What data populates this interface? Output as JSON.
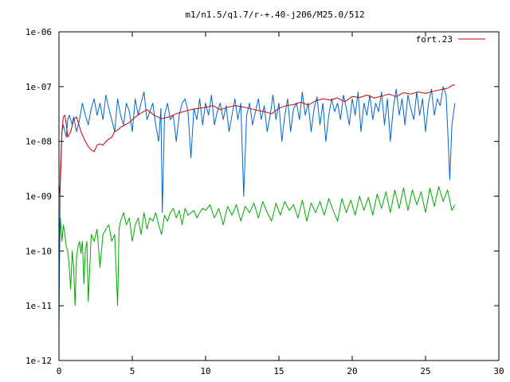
{
  "chart_data": {
    "type": "line",
    "title": "m1/n1.5/q1.7/r-+.40-j206/M25.0/512",
    "xlabel": "",
    "ylabel": "",
    "xlim": [
      0,
      30
    ],
    "ylim": [
      1e-12,
      1e-06
    ],
    "yscale": "log",
    "grid": false,
    "legend_position": "top-right",
    "x_ticks": [
      0,
      5,
      10,
      15,
      20,
      25,
      30
    ],
    "x_tick_labels": [
      "0",
      "5",
      "10",
      "15",
      "20",
      "25",
      "30"
    ],
    "y_ticks": [
      1e-12,
      1e-11,
      1e-10,
      1e-09,
      1e-08,
      1e-07,
      1e-06
    ],
    "y_tick_labels": [
      "1e-12",
      "1e-11",
      "1e-10",
      "1e-09",
      "1e-08",
      "1e-07",
      "1e-06"
    ],
    "series": [
      {
        "name": "fort.23",
        "color": "#cc0000",
        "x": [
          0.0,
          0.1,
          0.2,
          0.3,
          0.4,
          0.5,
          0.6,
          0.8,
          1.0,
          1.2,
          1.5,
          1.8,
          2.0,
          2.2,
          2.4,
          2.6,
          2.8,
          3.0,
          3.2,
          3.4,
          3.6,
          3.8,
          4.0,
          4.2,
          4.5,
          4.8,
          5.0,
          5.3,
          5.6,
          6.0,
          6.5,
          7.0,
          7.5,
          8.0,
          8.5,
          9.0,
          9.5,
          10.0,
          10.5,
          11.0,
          11.5,
          12.0,
          12.5,
          13.0,
          13.5,
          14.0,
          14.5,
          15.0,
          15.5,
          16.0,
          16.5,
          17.0,
          17.5,
          18.0,
          18.5,
          19.0,
          19.5,
          20.0,
          20.5,
          21.0,
          21.5,
          22.0,
          22.5,
          23.0,
          23.5,
          24.0,
          24.5,
          25.0,
          25.5,
          26.0,
          26.5,
          26.8,
          27.0
        ],
        "y": [
          1e-09,
          1.8e-09,
          1.5e-08,
          2.8e-08,
          3e-08,
          2e-08,
          1.2e-08,
          1.5e-08,
          2.5e-08,
          2.8e-08,
          1.5e-08,
          1e-08,
          8e-09,
          7e-09,
          6.5e-09,
          8.5e-09,
          9e-09,
          8.5e-09,
          1e-08,
          1.1e-08,
          1.2e-08,
          1.5e-08,
          1.6e-08,
          1.8e-08,
          2e-08,
          2.2e-08,
          2.5e-08,
          2.9e-08,
          3.3e-08,
          3.8e-08,
          3e-08,
          2.6e-08,
          2.8e-08,
          3.2e-08,
          3.5e-08,
          3.8e-08,
          4e-08,
          4.2e-08,
          4.5e-08,
          3.8e-08,
          4.2e-08,
          4.5e-08,
          4.3e-08,
          4e-08,
          3.7e-08,
          3.5e-08,
          3.2e-08,
          4e-08,
          4.5e-08,
          4.7e-08,
          5.2e-08,
          4.6e-08,
          5.5e-08,
          6e-08,
          5.7e-08,
          6.2e-08,
          5.3e-08,
          6.6e-08,
          6.3e-08,
          7e-08,
          6.2e-08,
          6.7e-08,
          7.3e-08,
          6.6e-08,
          7.7e-08,
          7.3e-08,
          8e-08,
          7.5e-08,
          8.2e-08,
          8.8e-08,
          9.3e-08,
          1.05e-07,
          1.08e-07
        ]
      },
      {
        "color": "#0066cc",
        "x": [
          0.0,
          0.05,
          0.1,
          0.2,
          0.3,
          0.4,
          0.5,
          0.6,
          0.7,
          0.8,
          0.9,
          1.0,
          1.2,
          1.4,
          1.6,
          1.8,
          2.0,
          2.2,
          2.4,
          2.6,
          2.8,
          3.0,
          3.2,
          3.4,
          3.6,
          3.8,
          4.0,
          4.2,
          4.4,
          4.6,
          4.8,
          5.0,
          5.2,
          5.4,
          5.6,
          5.8,
          6.0,
          6.2,
          6.4,
          6.6,
          6.8,
          6.95,
          7.05,
          7.2,
          7.4,
          7.6,
          7.8,
          8.0,
          8.2,
          8.4,
          8.6,
          8.8,
          9.0,
          9.2,
          9.4,
          9.6,
          9.8,
          10.0,
          10.2,
          10.4,
          10.6,
          10.8,
          11.0,
          11.2,
          11.4,
          11.6,
          11.8,
          12.0,
          12.2,
          12.4,
          12.6,
          12.8,
          13.0,
          13.2,
          13.4,
          13.6,
          13.8,
          14.0,
          14.2,
          14.4,
          14.6,
          14.8,
          15.0,
          15.2,
          15.4,
          15.6,
          15.8,
          16.0,
          16.2,
          16.4,
          16.6,
          16.8,
          17.0,
          17.2,
          17.4,
          17.6,
          17.8,
          18.0,
          18.2,
          18.4,
          18.6,
          18.8,
          19.0,
          19.2,
          19.4,
          19.6,
          19.8,
          20.0,
          20.2,
          20.4,
          20.6,
          20.8,
          21.0,
          21.2,
          21.4,
          21.6,
          21.8,
          22.0,
          22.2,
          22.4,
          22.6,
          22.8,
          23.0,
          23.2,
          23.4,
          23.6,
          23.8,
          24.0,
          24.2,
          24.4,
          24.6,
          24.8,
          25.0,
          25.2,
          25.4,
          25.6,
          25.8,
          26.0,
          26.2,
          26.4,
          26.55,
          26.65,
          26.8,
          27.0
        ],
        "y": [
          3e-12,
          2e-10,
          3e-09,
          1.5e-08,
          2e-08,
          1.5e-08,
          1.2e-08,
          2.5e-08,
          3e-08,
          2.5e-08,
          2e-08,
          2.8e-08,
          1.5e-08,
          2.5e-08,
          5e-08,
          3e-08,
          2e-08,
          4e-08,
          6e-08,
          3e-08,
          5e-08,
          2.5e-08,
          7e-08,
          4e-08,
          2.5e-08,
          1.5e-08,
          6e-08,
          3e-08,
          2e-08,
          5e-08,
          3.5e-08,
          1.5e-08,
          6e-08,
          3e-08,
          5e-08,
          8e-08,
          2.5e-08,
          3.5e-08,
          5e-08,
          2e-08,
          1e-08,
          4e-08,
          5e-10,
          3e-08,
          5e-08,
          2.5e-08,
          3e-08,
          1e-08,
          3e-08,
          5e-08,
          6e-08,
          3.5e-08,
          5e-09,
          4e-08,
          2.5e-08,
          6e-08,
          2e-08,
          5e-08,
          3e-08,
          7e-08,
          2e-08,
          3.5e-08,
          5e-08,
          2.5e-08,
          4.5e-08,
          1.5e-08,
          3e-08,
          6e-08,
          2.5e-08,
          5e-08,
          1e-09,
          3e-08,
          5e-08,
          2e-08,
          3.5e-08,
          6e-08,
          2.5e-08,
          4.5e-08,
          1.5e-08,
          3e-08,
          7e-08,
          2.5e-08,
          5e-08,
          1e-08,
          3e-08,
          6e-08,
          1.5e-08,
          4e-08,
          5e-08,
          2.5e-08,
          8e-08,
          3e-08,
          5e-08,
          1.5e-08,
          4e-08,
          6.5e-08,
          2e-08,
          5e-08,
          1e-08,
          3e-08,
          6e-08,
          3.5e-08,
          5e-08,
          2.5e-08,
          7e-08,
          4e-08,
          2e-08,
          6e-08,
          3e-08,
          8e-08,
          1.5e-08,
          5e-08,
          3e-08,
          7e-08,
          2.5e-08,
          5e-08,
          3.5e-08,
          8e-08,
          2e-08,
          6e-08,
          1e-08,
          4e-08,
          9e-08,
          3e-08,
          6e-08,
          2e-08,
          7e-08,
          4e-08,
          2.5e-08,
          8e-08,
          3e-08,
          6e-08,
          1.5e-08,
          5e-08,
          9e-08,
          3e-08,
          6e-08,
          4.5e-08,
          1e-07,
          7e-08,
          1e-08,
          2e-09,
          2e-08,
          5e-08
        ]
      },
      {
        "color": "#00aa00",
        "x": [
          0.0,
          0.1,
          0.2,
          0.3,
          0.4,
          0.5,
          0.6,
          0.7,
          0.8,
          0.9,
          1.0,
          1.1,
          1.2,
          1.3,
          1.4,
          1.5,
          1.6,
          1.7,
          1.8,
          1.9,
          2.0,
          2.2,
          2.4,
          2.6,
          2.8,
          3.0,
          3.2,
          3.4,
          3.6,
          3.8,
          4.0,
          4.1,
          4.2,
          4.4,
          4.6,
          4.8,
          5.0,
          5.2,
          5.4,
          5.6,
          5.8,
          6.0,
          6.2,
          6.4,
          6.6,
          6.8,
          7.0,
          7.2,
          7.4,
          7.6,
          7.8,
          8.0,
          8.2,
          8.4,
          8.6,
          8.8,
          9.0,
          9.2,
          9.4,
          9.6,
          9.8,
          10.0,
          10.3,
          10.6,
          10.9,
          11.2,
          11.5,
          11.8,
          12.1,
          12.4,
          12.7,
          13.0,
          13.3,
          13.6,
          13.9,
          14.2,
          14.5,
          14.8,
          15.1,
          15.4,
          15.7,
          16.0,
          16.3,
          16.6,
          16.9,
          17.2,
          17.5,
          17.8,
          18.1,
          18.4,
          18.7,
          19.0,
          19.3,
          19.6,
          19.9,
          20.2,
          20.5,
          20.8,
          21.1,
          21.4,
          21.7,
          22.0,
          22.3,
          22.6,
          22.9,
          23.2,
          23.5,
          23.8,
          24.1,
          24.4,
          24.7,
          25.0,
          25.3,
          25.6,
          25.9,
          26.2,
          26.5,
          26.8,
          27.0
        ],
        "y": [
          3e-11,
          4e-10,
          1.5e-10,
          3e-10,
          2e-10,
          1.2e-10,
          1e-10,
          5e-11,
          2e-11,
          1e-10,
          5e-11,
          1e-11,
          8e-11,
          1.2e-10,
          1.5e-10,
          9e-11,
          1.5e-10,
          2.5e-11,
          1e-10,
          1.5e-10,
          1.2e-11,
          2e-10,
          1.5e-10,
          2.5e-10,
          5e-11,
          2e-10,
          2.5e-10,
          3e-10,
          1.5e-10,
          2e-10,
          1e-11,
          2.5e-10,
          3.5e-10,
          5e-10,
          3e-10,
          4e-10,
          1.5e-10,
          3e-10,
          4e-10,
          2e-10,
          5e-10,
          2.5e-10,
          4e-10,
          3.5e-10,
          5e-10,
          3e-10,
          2e-10,
          4.5e-10,
          3.5e-10,
          5e-10,
          6e-10,
          4e-10,
          5.5e-10,
          3e-10,
          6e-10,
          4.5e-10,
          5e-10,
          5.5e-10,
          4e-10,
          5e-10,
          6e-10,
          5.5e-10,
          7e-10,
          4e-10,
          6e-10,
          3e-10,
          6.5e-10,
          4.5e-10,
          7e-10,
          3.5e-10,
          6.5e-10,
          5e-10,
          7.5e-10,
          4e-10,
          8e-10,
          5e-10,
          3.5e-10,
          7.5e-10,
          4.5e-10,
          8e-10,
          5.5e-10,
          7e-10,
          4e-10,
          8.5e-10,
          3.5e-10,
          7.5e-10,
          5e-10,
          8e-10,
          4.5e-10,
          9e-10,
          5.5e-10,
          3.5e-10,
          9e-10,
          5e-10,
          8.5e-10,
          4.5e-10,
          1e-09,
          5.5e-10,
          9.5e-10,
          4.5e-10,
          1.1e-09,
          6e-10,
          1.2e-09,
          5e-10,
          1.3e-09,
          6e-10,
          1.4e-09,
          5.5e-10,
          1.3e-09,
          7e-10,
          1.2e-09,
          5e-10,
          1.4e-09,
          6.5e-10,
          1.5e-09,
          8e-10,
          1.3e-09,
          5.5e-10,
          7e-10
        ]
      }
    ]
  }
}
